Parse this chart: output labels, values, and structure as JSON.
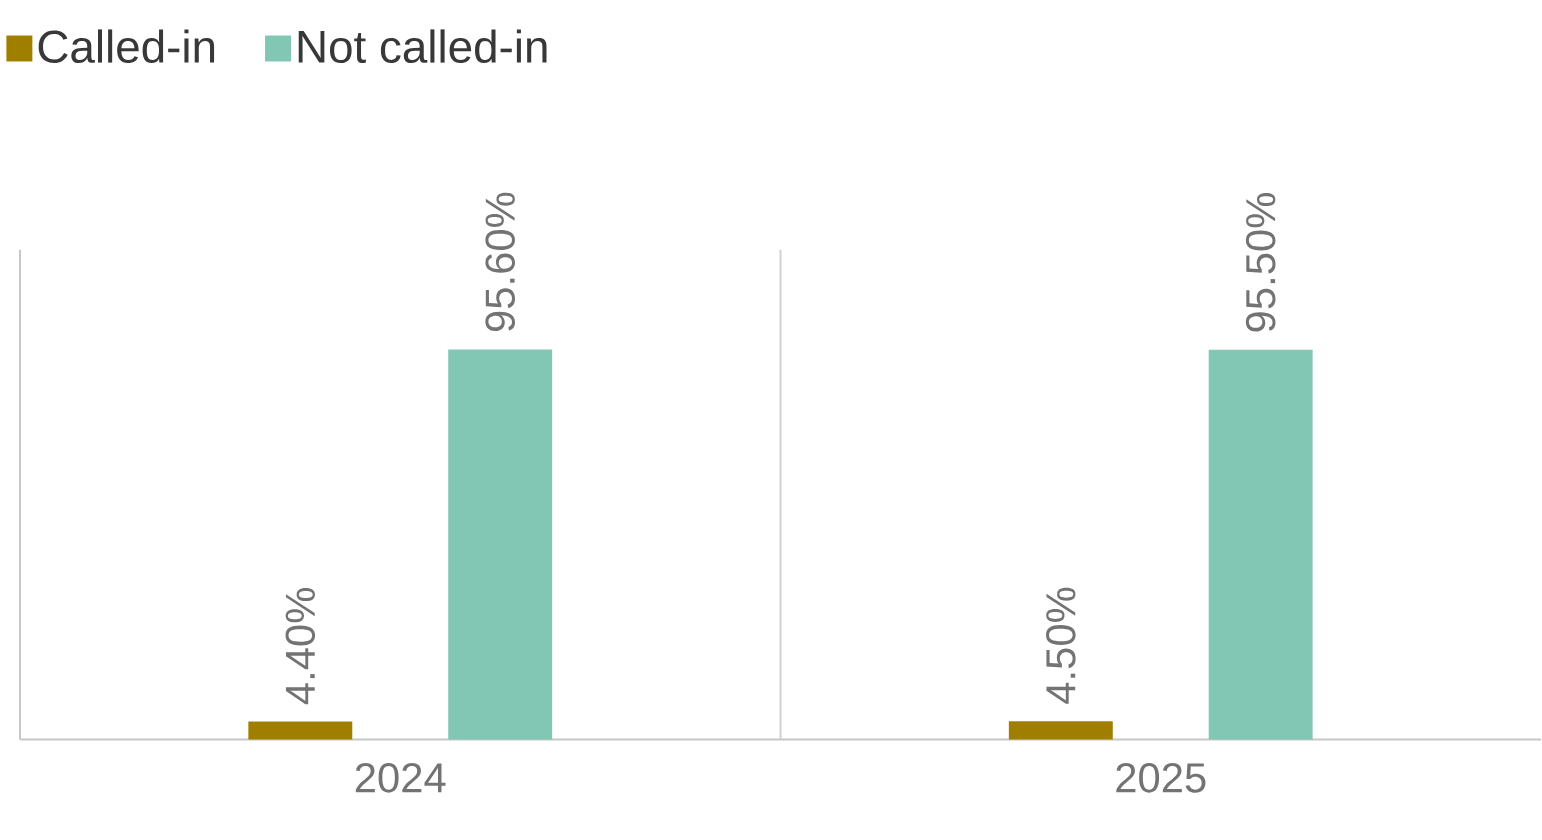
{
  "chart_data": {
    "type": "bar",
    "categories": [
      "2024",
      "2025"
    ],
    "series": [
      {
        "name": "Called-in",
        "color": "#a07f00",
        "values": [
          4.4,
          4.5
        ],
        "value_labels": [
          "4.40%",
          "4.50%"
        ]
      },
      {
        "name": "Not called-in",
        "color": "#82c7b3",
        "values": [
          95.6,
          95.5
        ],
        "value_labels": [
          "95.60%",
          "95.50%"
        ]
      }
    ],
    "ylim": [
      0,
      120
    ],
    "legend": "top left"
  }
}
